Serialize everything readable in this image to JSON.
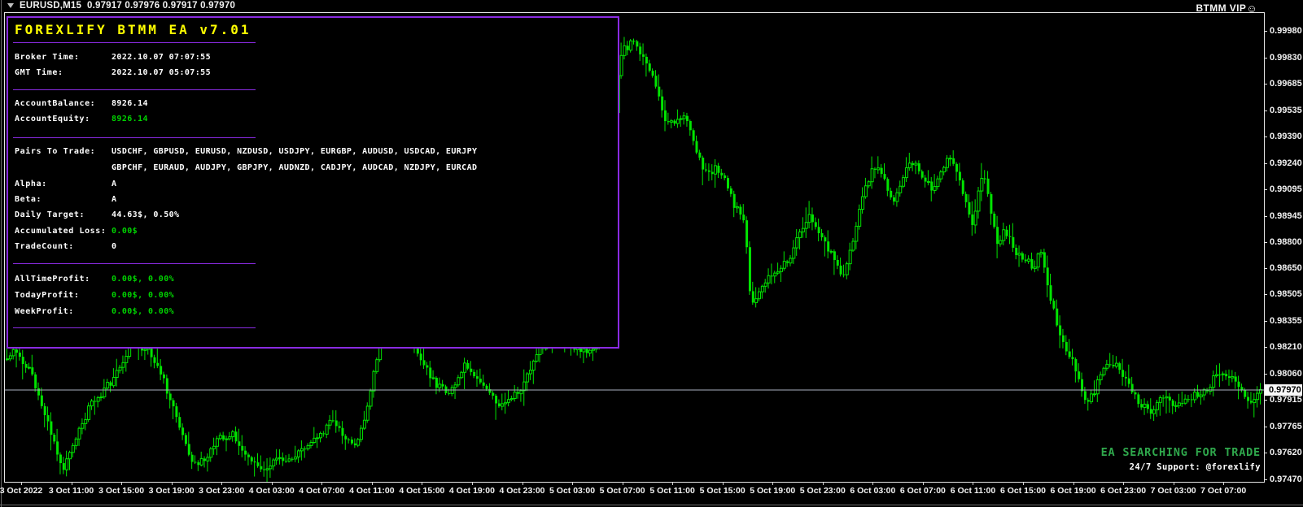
{
  "title_bar": {
    "dropdown_icon": "▼",
    "symbol": "EURUSD,M15",
    "ohlc": "0.97917 0.97976 0.97917 0.97970",
    "watermark": "BTMM VIP",
    "watermark_icon": "☺"
  },
  "ea_panel": {
    "title": "FOREXLIFY BTMM EA v7.01",
    "rows": [
      {
        "label": "Broker Time:",
        "value": "2022.10.07 07:07:55",
        "color": "white"
      },
      {
        "label": "GMT Time:",
        "value": "2022.10.07 05:07:55",
        "color": "white"
      },
      {
        "label": "AccountBalance:",
        "value": "8926.14",
        "color": "white"
      },
      {
        "label": "AccountEquity:",
        "value": "8926.14",
        "color": "green"
      },
      {
        "label": "Pairs To Trade:",
        "value": "USDCHF, GBPUSD, EURUSD, NZDUSD, USDJPY, EURGBP, AUDUSD, USDCAD, EURJPY",
        "value2": "GBPCHF, EURAUD, AUDJPY, GBPJPY, AUDNZD, CADJPY, AUDCAD, NZDJPY, EURCAD",
        "color": "white"
      },
      {
        "label": "Alpha:",
        "value": "A",
        "color": "white"
      },
      {
        "label": "Beta:",
        "value": "A",
        "color": "white"
      },
      {
        "label": "Daily Target:",
        "value": "44.63$, 0.50%",
        "color": "white"
      },
      {
        "label": "Accumulated Loss:",
        "value": "0.00$",
        "color": "green"
      },
      {
        "label": "TradeCount:",
        "value": "0",
        "color": "white"
      },
      {
        "label": "AllTimeProfit:",
        "value": "0.00$, 0.00%",
        "color": "green"
      },
      {
        "label": "TodayProfit:",
        "value": "0.00$, 0.00%",
        "color": "green"
      },
      {
        "label": "WeekProfit:",
        "value": "0.00$, 0.00%",
        "color": "green"
      }
    ]
  },
  "status": {
    "message": "EA SEARCHING FOR TRADE",
    "support": "24/7 Support: @forexlify"
  },
  "chart_data": {
    "type": "candlestick",
    "symbol": "EURUSD",
    "timeframe": "M15",
    "current_price": "0.97970",
    "price_axis_top": 0.9998,
    "price_axis_bottom": 0.9747,
    "price_axis_labels": [
      "0.99980",
      "0.99830",
      "0.99685",
      "0.99535",
      "0.99390",
      "0.99240",
      "0.99095",
      "0.98945",
      "0.98800",
      "0.98650",
      "0.98505",
      "0.98355",
      "0.98210",
      "0.98060",
      "0.97915",
      "0.97765",
      "0.97620",
      "0.97470"
    ],
    "time_axis_labels": [
      "3 Oct 2022",
      "3 Oct 11:00",
      "3 Oct 15:00",
      "3 Oct 19:00",
      "3 Oct 23:00",
      "4 Oct 03:00",
      "4 Oct 07:00",
      "4 Oct 11:00",
      "4 Oct 15:00",
      "4 Oct 19:00",
      "4 Oct 23:00",
      "5 Oct 03:00",
      "5 Oct 07:00",
      "5 Oct 11:00",
      "5 Oct 15:00",
      "5 Oct 19:00",
      "5 Oct 23:00",
      "6 Oct 03:00",
      "6 Oct 07:00",
      "6 Oct 11:00",
      "6 Oct 15:00",
      "6 Oct 19:00",
      "6 Oct 23:00",
      "7 Oct 03:00",
      "7 Oct 07:00"
    ],
    "price_path": [
      [
        0,
        0.9812
      ],
      [
        20,
        0.982
      ],
      [
        40,
        0.9806
      ],
      [
        60,
        0.978
      ],
      [
        80,
        0.9752
      ],
      [
        95,
        0.977
      ],
      [
        115,
        0.979
      ],
      [
        140,
        0.9802
      ],
      [
        165,
        0.9825
      ],
      [
        185,
        0.9818
      ],
      [
        205,
        0.98
      ],
      [
        225,
        0.9772
      ],
      [
        240,
        0.9754
      ],
      [
        255,
        0.9758
      ],
      [
        272,
        0.977
      ],
      [
        290,
        0.9772
      ],
      [
        305,
        0.976
      ],
      [
        320,
        0.9752
      ],
      [
        340,
        0.9758
      ],
      [
        360,
        0.976
      ],
      [
        378,
        0.9765
      ],
      [
        395,
        0.9772
      ],
      [
        410,
        0.978
      ],
      [
        425,
        0.977
      ],
      [
        440,
        0.9768
      ],
      [
        455,
        0.979
      ],
      [
        465,
        0.9815
      ],
      [
        478,
        0.9833
      ],
      [
        492,
        0.9838
      ],
      [
        508,
        0.9825
      ],
      [
        522,
        0.9812
      ],
      [
        538,
        0.98
      ],
      [
        552,
        0.9796
      ],
      [
        565,
        0.9804
      ],
      [
        575,
        0.9812
      ],
      [
        588,
        0.9805
      ],
      [
        600,
        0.9796
      ],
      [
        615,
        0.9788
      ],
      [
        630,
        0.9792
      ],
      [
        645,
        0.98
      ],
      [
        658,
        0.9812
      ],
      [
        670,
        0.9823
      ],
      [
        685,
        0.9828
      ],
      [
        700,
        0.9824
      ],
      [
        715,
        0.9818
      ],
      [
        730,
        0.982
      ],
      [
        742,
        0.983
      ],
      [
        748,
        0.986
      ],
      [
        754,
        0.992
      ],
      [
        760,
        0.997
      ],
      [
        766,
        0.9986
      ],
      [
        775,
        0.999
      ],
      [
        783,
        0.9993
      ],
      [
        790,
        0.9985
      ],
      [
        800,
        0.9976
      ],
      [
        812,
        0.996
      ],
      [
        822,
        0.9945
      ],
      [
        832,
        0.9948
      ],
      [
        842,
        0.9952
      ],
      [
        852,
        0.9942
      ],
      [
        862,
        0.9925
      ],
      [
        872,
        0.9918
      ],
      [
        880,
        0.9921
      ],
      [
        888,
        0.9918
      ],
      [
        896,
        0.991
      ],
      [
        904,
        0.9901
      ],
      [
        912,
        0.9896
      ],
      [
        918,
        0.9886
      ],
      [
        922,
        0.9855
      ],
      [
        926,
        0.9845
      ],
      [
        932,
        0.9848
      ],
      [
        940,
        0.9855
      ],
      [
        950,
        0.9862
      ],
      [
        960,
        0.9866
      ],
      [
        970,
        0.9868
      ],
      [
        980,
        0.988
      ],
      [
        990,
        0.989
      ],
      [
        998,
        0.9894
      ],
      [
        1006,
        0.9886
      ],
      [
        1014,
        0.988
      ],
      [
        1022,
        0.9875
      ],
      [
        1030,
        0.9866
      ],
      [
        1038,
        0.986
      ],
      [
        1046,
        0.9872
      ],
      [
        1054,
        0.989
      ],
      [
        1062,
        0.9905
      ],
      [
        1070,
        0.9916
      ],
      [
        1078,
        0.9922
      ],
      [
        1086,
        0.9916
      ],
      [
        1094,
        0.9908
      ],
      [
        1100,
        0.9904
      ],
      [
        1108,
        0.9912
      ],
      [
        1116,
        0.992
      ],
      [
        1124,
        0.9924
      ],
      [
        1132,
        0.992
      ],
      [
        1140,
        0.9914
      ],
      [
        1148,
        0.991
      ],
      [
        1156,
        0.9916
      ],
      [
        1164,
        0.9924
      ],
      [
        1170,
        0.9926
      ],
      [
        1176,
        0.992
      ],
      [
        1184,
        0.991
      ],
      [
        1192,
        0.9898
      ],
      [
        1198,
        0.9888
      ],
      [
        1204,
        0.9908
      ],
      [
        1210,
        0.9918
      ],
      [
        1216,
        0.9906
      ],
      [
        1222,
        0.989
      ],
      [
        1228,
        0.9878
      ],
      [
        1234,
        0.9886
      ],
      [
        1240,
        0.9884
      ],
      [
        1248,
        0.9876
      ],
      [
        1256,
        0.9872
      ],
      [
        1264,
        0.987
      ],
      [
        1272,
        0.9862
      ],
      [
        1278,
        0.9876
      ],
      [
        1284,
        0.987
      ],
      [
        1290,
        0.9852
      ],
      [
        1296,
        0.9842
      ],
      [
        1304,
        0.983
      ],
      [
        1312,
        0.982
      ],
      [
        1320,
        0.9812
      ],
      [
        1328,
        0.9802
      ],
      [
        1334,
        0.979
      ],
      [
        1342,
        0.9792
      ],
      [
        1350,
        0.98
      ],
      [
        1358,
        0.9808
      ],
      [
        1366,
        0.9812
      ],
      [
        1374,
        0.981
      ],
      [
        1382,
        0.9806
      ],
      [
        1390,
        0.9798
      ],
      [
        1398,
        0.9792
      ],
      [
        1406,
        0.9788
      ],
      [
        1414,
        0.9785
      ],
      [
        1422,
        0.9788
      ],
      [
        1430,
        0.9792
      ],
      [
        1438,
        0.9792
      ],
      [
        1446,
        0.9786
      ],
      [
        1454,
        0.979
      ],
      [
        1462,
        0.9792
      ],
      [
        1470,
        0.9794
      ],
      [
        1478,
        0.9796
      ],
      [
        1486,
        0.9798
      ],
      [
        1494,
        0.9804
      ],
      [
        1502,
        0.9808
      ],
      [
        1510,
        0.9806
      ],
      [
        1518,
        0.9802
      ],
      [
        1526,
        0.98
      ],
      [
        1534,
        0.9792
      ],
      [
        1542,
        0.979
      ],
      [
        1552,
        0.9797
      ]
    ],
    "colors": {
      "background": "#000000",
      "candle": "#00E400",
      "panel_border": "#8A2BE2",
      "panel_title": "#FFFF00",
      "green_value": "#00D200",
      "current_price_line": "#AAB2BF",
      "axis_text": "#F2F2F2",
      "status_green": "#2FA84C"
    }
  }
}
